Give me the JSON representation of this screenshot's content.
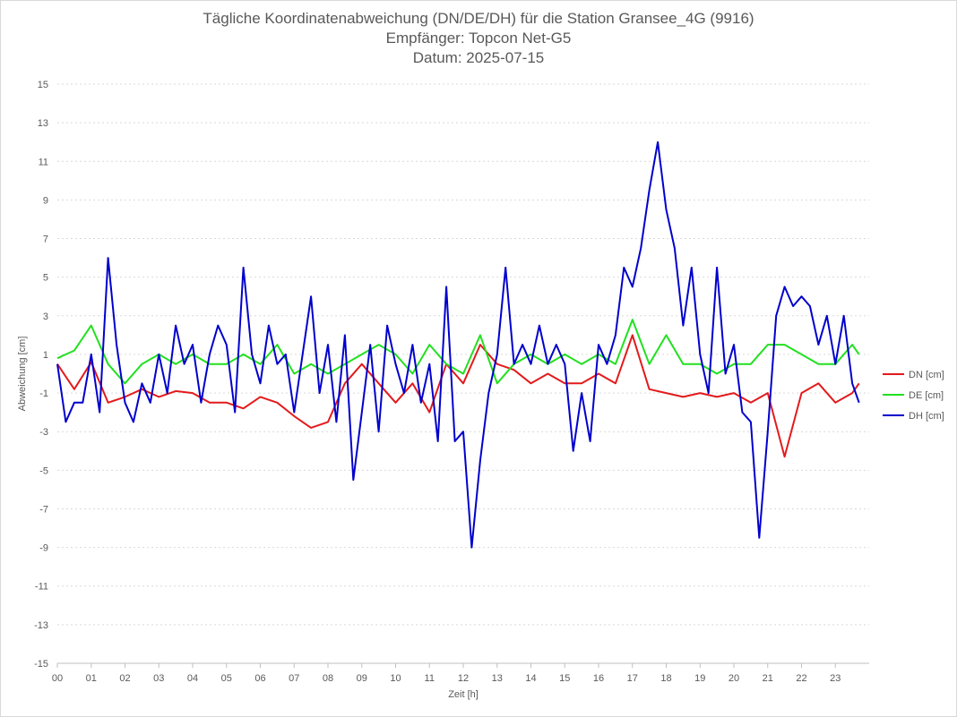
{
  "chart_data": {
    "type": "line",
    "title": "Tägliche Koordinatenabweichung (DN/DE/DH) für die Station Gransee_4G (9916)",
    "subtitle": "Empfänger: Topcon Net-G5",
    "subtitle2": "Datum: 2025-07-15",
    "xlabel": "Zeit [h]",
    "ylabel": "Abweichung [cm]",
    "ylim": [
      -15,
      15
    ],
    "xlim": [
      0,
      24
    ],
    "y_ticks": [
      "15",
      "13",
      "11",
      "9",
      "7",
      "5",
      "3",
      "1",
      "-1",
      "-3",
      "-5",
      "-7",
      "-9",
      "-11",
      "-13",
      "-15"
    ],
    "x_ticks": [
      "00",
      "01",
      "02",
      "03",
      "04",
      "05",
      "06",
      "07",
      "08",
      "09",
      "10",
      "11",
      "12",
      "13",
      "14",
      "15",
      "16",
      "17",
      "18",
      "19",
      "20",
      "21",
      "22",
      "23"
    ],
    "grid": true,
    "legend_position": "right",
    "series": [
      {
        "name": "DN [cm]",
        "color": "#e31a1c",
        "x": [
          0,
          0.5,
          1,
          1.5,
          2,
          2.5,
          3,
          3.5,
          4,
          4.5,
          5,
          5.5,
          6,
          6.5,
          7,
          7.5,
          8,
          8.5,
          9,
          9.5,
          10,
          10.5,
          11,
          11.5,
          12,
          12.5,
          13,
          13.5,
          14,
          14.5,
          15,
          15.5,
          16,
          16.5,
          17,
          17.5,
          18,
          18.5,
          19,
          19.5,
          20,
          20.5,
          21,
          21.5,
          22,
          22.5,
          23,
          23.5,
          23.7
        ],
        "values": [
          0.5,
          -0.8,
          0.6,
          -1.5,
          -1.2,
          -0.8,
          -1.2,
          -0.9,
          -1.0,
          -1.5,
          -1.5,
          -1.8,
          -1.2,
          -1.5,
          -2.2,
          -2.8,
          -2.5,
          -0.5,
          0.5,
          -0.5,
          -1.5,
          -0.5,
          -2.0,
          0.5,
          -0.5,
          1.5,
          0.5,
          0.2,
          -0.5,
          0.0,
          -0.5,
          -0.5,
          0.0,
          -0.5,
          2.0,
          -0.8,
          -1.0,
          -1.2,
          -1.0,
          -1.2,
          -1.0,
          -1.5,
          -1.0,
          -4.3,
          -1.0,
          -0.5,
          -1.5,
          -1.0,
          -0.5
        ]
      },
      {
        "name": "DE [cm]",
        "color": "#22e01f",
        "x": [
          0,
          0.5,
          1,
          1.5,
          2,
          2.5,
          3,
          3.5,
          4,
          4.5,
          5,
          5.5,
          6,
          6.5,
          7,
          7.5,
          8,
          8.5,
          9,
          9.5,
          10,
          10.5,
          11,
          11.5,
          12,
          12.5,
          13,
          13.5,
          14,
          14.5,
          15,
          15.5,
          16,
          16.5,
          17,
          17.5,
          18,
          18.5,
          19,
          19.5,
          20,
          20.5,
          21,
          21.5,
          22,
          22.5,
          23,
          23.5,
          23.7
        ],
        "values": [
          0.8,
          1.2,
          2.5,
          0.5,
          -0.5,
          0.5,
          1.0,
          0.5,
          1.0,
          0.5,
          0.5,
          1.0,
          0.5,
          1.5,
          0.0,
          0.5,
          0.0,
          0.5,
          1.0,
          1.5,
          1.0,
          0.0,
          1.5,
          0.5,
          0.0,
          2.0,
          -0.5,
          0.5,
          1.0,
          0.5,
          1.0,
          0.5,
          1.0,
          0.5,
          2.8,
          0.5,
          2.0,
          0.5,
          0.5,
          0.0,
          0.5,
          0.5,
          1.5,
          1.5,
          1.0,
          0.5,
          0.5,
          1.5,
          1.0
        ]
      },
      {
        "name": "DH [cm]",
        "color": "#0000cd",
        "x": [
          0,
          0.25,
          0.5,
          0.75,
          1,
          1.25,
          1.5,
          1.75,
          2,
          2.25,
          2.5,
          2.75,
          3,
          3.25,
          3.5,
          3.75,
          4,
          4.25,
          4.5,
          4.75,
          5,
          5.25,
          5.5,
          5.75,
          6,
          6.25,
          6.5,
          6.75,
          7,
          7.25,
          7.5,
          7.75,
          8,
          8.25,
          8.5,
          8.75,
          9,
          9.25,
          9.5,
          9.75,
          10,
          10.25,
          10.5,
          10.75,
          11,
          11.25,
          11.5,
          11.75,
          12,
          12.25,
          12.5,
          12.75,
          13,
          13.25,
          13.5,
          13.75,
          14,
          14.25,
          14.5,
          14.75,
          15,
          15.25,
          15.5,
          15.75,
          16,
          16.25,
          16.5,
          16.75,
          17,
          17.25,
          17.5,
          17.75,
          18,
          18.25,
          18.5,
          18.75,
          19,
          19.25,
          19.5,
          19.75,
          20,
          20.25,
          20.5,
          20.75,
          21,
          21.25,
          21.5,
          21.75,
          22,
          22.25,
          22.5,
          22.75,
          23,
          23.25,
          23.5,
          23.7
        ],
        "values": [
          0.5,
          -2.5,
          -1.5,
          -1.5,
          1.0,
          -2.0,
          6.0,
          1.5,
          -1.5,
          -2.5,
          -0.5,
          -1.5,
          1.0,
          -1.0,
          2.5,
          0.5,
          1.5,
          -1.5,
          1.0,
          2.5,
          1.5,
          -2.0,
          5.5,
          1.0,
          -0.5,
          2.5,
          0.5,
          1.0,
          -2.0,
          1.0,
          4.0,
          -1.0,
          1.5,
          -2.5,
          2.0,
          -5.5,
          -2.0,
          1.5,
          -3.0,
          2.5,
          0.5,
          -1.0,
          1.5,
          -1.5,
          0.5,
          -3.5,
          4.5,
          -3.5,
          -3.0,
          -9.0,
          -4.5,
          -1.0,
          1.0,
          5.5,
          0.5,
          1.5,
          0.5,
          2.5,
          0.5,
          1.5,
          0.5,
          -4.0,
          -1.0,
          -3.5,
          1.5,
          0.5,
          2.0,
          5.5,
          4.5,
          6.5,
          9.5,
          12.0,
          8.5,
          6.5,
          2.5,
          5.5,
          1.0,
          -1.0,
          5.5,
          0.0,
          1.5,
          -2.0,
          -2.5,
          -8.5,
          -3.0,
          3.0,
          4.5,
          3.5,
          4.0,
          3.5,
          1.5,
          3.0,
          0.5,
          3.0,
          -0.5,
          -1.5
        ]
      }
    ]
  }
}
